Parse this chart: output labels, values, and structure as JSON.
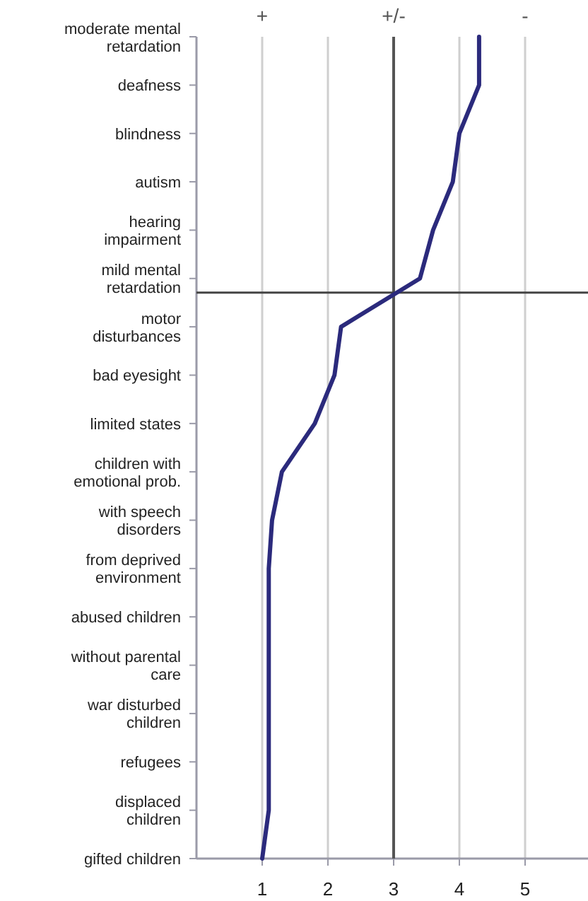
{
  "chart_data": {
    "type": "line",
    "orientation": "horizontal",
    "categories": [
      "moderate mental retardation",
      "deafness",
      "blindness",
      "autism",
      "hearing impairment",
      "mild mental retardation",
      "motor disturbances",
      "bad eyesight",
      "limited states",
      "children with emotional prob.",
      "with speech disorders",
      "from deprived environment",
      "abused children",
      "without parental care",
      "war disturbed children",
      "refugees",
      "displaced children",
      "gifted children"
    ],
    "series": [
      {
        "color": "#2b2a7c",
        "values": [
          4.3,
          4.3,
          4.0,
          3.9,
          3.6,
          3.4,
          2.2,
          2.1,
          1.8,
          1.3,
          1.15,
          1.1,
          1.1,
          1.1,
          1.1,
          1.1,
          1.1,
          1.0
        ]
      }
    ],
    "xlim": [
      0,
      6
    ],
    "xticks": [
      1,
      2,
      3,
      4,
      5
    ],
    "annotations": [
      "+",
      "+/-",
      "-"
    ],
    "grid": "x",
    "marker": "none",
    "line_style": "solid",
    "ref_lines": [
      {
        "axis": "x",
        "value": 3,
        "color": "#555555"
      },
      {
        "axis": "y",
        "value": "mild mental retardation",
        "color": "#444444"
      }
    ]
  }
}
